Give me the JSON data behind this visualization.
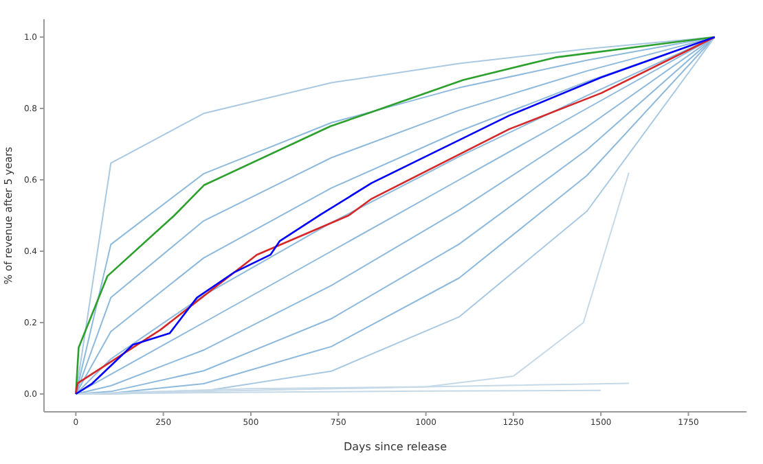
{
  "chart_data": {
    "type": "line",
    "xlabel": "Days since release",
    "ylabel": "% of revenue after 5 years",
    "xlim": [
      -91,
      1916
    ],
    "ylim": [
      -0.05,
      1.05
    ],
    "xticks": [
      0,
      250,
      500,
      750,
      1000,
      1250,
      1500,
      1750
    ],
    "yticks": [
      {
        "value": 0,
        "label": "0.0"
      },
      {
        "value": 0.2,
        "label": "0.2"
      },
      {
        "value": 0.4,
        "label": "0.4"
      },
      {
        "value": 0.6,
        "label": "0.6"
      },
      {
        "value": 0.8,
        "label": "0.8"
      },
      {
        "value": 1,
        "label": "1.0"
      }
    ],
    "grid": false,
    "legend": false,
    "marker": "none",
    "line_style": "solid",
    "series": [
      {
        "color": "#a9c9e2",
        "x": [
          0,
          100,
          365,
          730,
          1095,
          1460,
          1825
        ],
        "values": [
          0,
          0.647,
          0.786,
          0.872,
          0.926,
          0.967,
          1
        ]
      },
      {
        "color": "#8db9dc",
        "x": [
          0,
          100,
          365,
          730,
          1095,
          1460,
          1825
        ],
        "values": [
          0,
          0.419,
          0.617,
          0.76,
          0.858,
          0.935,
          1
        ]
      },
      {
        "color": "#8db9dc",
        "x": [
          0,
          100,
          365,
          730,
          1095,
          1460,
          1825
        ],
        "values": [
          0,
          0.27,
          0.485,
          0.662,
          0.795,
          0.905,
          1
        ]
      },
      {
        "color": "#8db9dc",
        "x": [
          0,
          100,
          365,
          730,
          1095,
          1460,
          1825
        ],
        "values": [
          0,
          0.175,
          0.381,
          0.577,
          0.736,
          0.875,
          1
        ]
      },
      {
        "color": "#8db9dc",
        "x": [
          0,
          100,
          365,
          730,
          1095,
          1460,
          1825
        ],
        "values": [
          0,
          0.098,
          0.276,
          0.48,
          0.665,
          0.836,
          1
        ]
      },
      {
        "color": "#8db9dc",
        "x": [
          0,
          100,
          365,
          730,
          1095,
          1460,
          1825
        ],
        "values": [
          0,
          0.055,
          0.2,
          0.4,
          0.6,
          0.8,
          1
        ]
      },
      {
        "color": "#8db9dc",
        "x": [
          0,
          100,
          365,
          730,
          1095,
          1460,
          1825
        ],
        "values": [
          0,
          0.023,
          0.123,
          0.304,
          0.515,
          0.748,
          1
        ]
      },
      {
        "color": "#8db9dc",
        "x": [
          0,
          100,
          365,
          730,
          1095,
          1460,
          1825
        ],
        "values": [
          0,
          0.007,
          0.065,
          0.211,
          0.42,
          0.684,
          1
        ]
      },
      {
        "color": "#8db9dc",
        "x": [
          0,
          100,
          365,
          730,
          1095,
          1460,
          1825
        ],
        "values": [
          0,
          0.002,
          0.029,
          0.133,
          0.325,
          0.612,
          1
        ]
      },
      {
        "color": "#a9c9e2",
        "x": [
          0,
          100,
          365,
          730,
          1095,
          1460,
          1825
        ],
        "values": [
          0,
          0,
          0.008,
          0.064,
          0.216,
          0.512,
          1
        ]
      },
      {
        "color": "#c5d9e8",
        "x": [
          0,
          500,
          1000,
          1250,
          1450,
          1580
        ],
        "values": [
          0,
          0.01,
          0.02,
          0.05,
          0.2,
          0.62
        ]
      },
      {
        "color": "#c5d9e8",
        "x": [
          0,
          500,
          1000,
          1580
        ],
        "values": [
          0,
          0.015,
          0.02,
          0.03
        ]
      },
      {
        "color": "#c5d9e8",
        "x": [
          0,
          500,
          1000,
          1500
        ],
        "values": [
          0,
          0.005,
          0.008,
          0.01
        ]
      },
      {
        "color": "#2ca02c",
        "x": [
          0,
          8,
          90,
          281,
          366,
          727,
          845,
          1107,
          1370,
          1825
        ],
        "values": [
          0,
          0.13,
          0.33,
          0.5,
          0.585,
          0.75,
          0.79,
          0.88,
          0.943,
          1
        ]
      },
      {
        "color": "#d62728",
        "x": [
          0,
          5,
          242,
          517,
          779,
          845,
          1238,
          1501,
          1825
        ],
        "values": [
          0,
          0.03,
          0.18,
          0.39,
          0.5,
          0.547,
          0.742,
          0.843,
          1
        ]
      },
      {
        "color": "#0000ff",
        "x": [
          0,
          45,
          163,
          268,
          346,
          451,
          556,
          582,
          700,
          845,
          976,
          1238,
          1501,
          1825
        ],
        "values": [
          0,
          0.028,
          0.138,
          0.17,
          0.27,
          0.34,
          0.39,
          0.428,
          0.503,
          0.591,
          0.654,
          0.78,
          0.887,
          1
        ]
      }
    ]
  }
}
